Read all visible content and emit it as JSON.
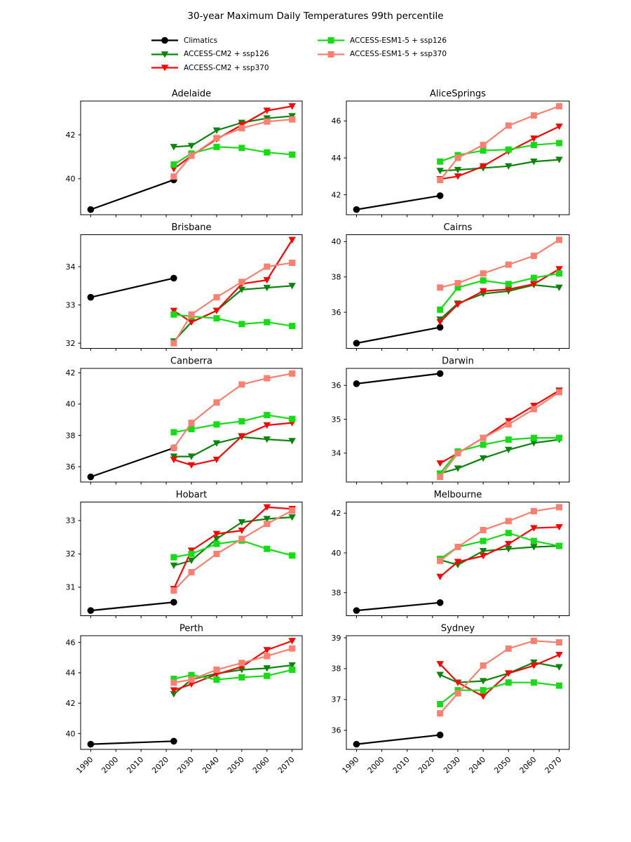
{
  "figure": {
    "title": "30-year Maximum Daily Temperatures 99th percentile"
  },
  "legend": {
    "columns": [
      [
        {
          "series": "climatics",
          "label": "Climatics"
        },
        {
          "series": "cm2_ssp126",
          "label": "ACCESS-CM2 + ssp126"
        },
        {
          "series": "cm2_ssp370",
          "label": "ACCESS-CM2 + ssp370"
        }
      ],
      [
        {
          "series": "esm_ssp126",
          "label": "ACCESS-ESM1-5 + ssp126"
        },
        {
          "series": "esm_ssp370",
          "label": "ACCESS-ESM1-5 + ssp370"
        }
      ]
    ]
  },
  "series_styles": {
    "climatics": {
      "color": "#000000",
      "marker": "circle"
    },
    "cm2_ssp126": {
      "color": "#0a840a",
      "marker": "triangle-down"
    },
    "cm2_ssp370": {
      "color": "#f90606",
      "marker": "triangle-down"
    },
    "esm_ssp126": {
      "color": "#16dc16",
      "marker": "square"
    },
    "esm_ssp370": {
      "color": "#fa8072",
      "marker": "square"
    }
  },
  "chart_data": {
    "type": "line",
    "title": "30-year Maximum Daily Temperatures 99th percentile",
    "x_climatics": [
      1990,
      2023
    ],
    "x_models": [
      2023,
      2030,
      2040,
      2050,
      2060,
      2070
    ],
    "xticks": [
      1990,
      2000,
      2010,
      2020,
      2030,
      2040,
      2050,
      2060,
      2070
    ],
    "x_tick_labels": [
      "1990",
      "2000",
      "2010",
      "2020",
      "2030",
      "2040",
      "2050",
      "2060",
      "2070"
    ],
    "xlim": [
      1986,
      2074
    ],
    "grid": false,
    "legend_position": "top",
    "subplots": [
      {
        "title": "Adelaide",
        "yticks": [
          40,
          42
        ],
        "series": {
          "climatics": [
            38.6,
            39.95
          ],
          "cm2_ssp126": [
            41.45,
            41.5,
            42.2,
            42.55,
            42.75,
            42.85
          ],
          "cm2_ssp370": [
            40.45,
            41.05,
            41.8,
            42.45,
            43.1,
            43.3
          ],
          "esm_ssp126": [
            40.65,
            41.15,
            41.45,
            41.4,
            41.2,
            41.1
          ],
          "esm_ssp370": [
            40.1,
            41.05,
            41.85,
            42.3,
            42.6,
            42.7
          ]
        }
      },
      {
        "title": "AliceSprings",
        "yticks": [
          42,
          44,
          46
        ],
        "series": {
          "climatics": [
            41.2,
            41.95
          ],
          "cm2_ssp126": [
            43.3,
            43.35,
            43.45,
            43.55,
            43.8,
            43.9
          ],
          "cm2_ssp370": [
            42.85,
            43.0,
            43.55,
            44.35,
            45.05,
            45.7
          ],
          "esm_ssp126": [
            43.8,
            44.15,
            44.4,
            44.45,
            44.7,
            44.8
          ],
          "esm_ssp370": [
            42.8,
            44.0,
            44.7,
            45.75,
            46.3,
            46.8
          ]
        }
      },
      {
        "title": "Brisbane",
        "yticks": [
          32,
          33,
          34
        ],
        "series": {
          "climatics": [
            33.2,
            33.7
          ],
          "cm2_ssp126": [
            32.05,
            32.55,
            32.85,
            33.4,
            33.45,
            33.5
          ],
          "cm2_ssp370": [
            32.85,
            32.55,
            32.85,
            33.55,
            33.65,
            34.7
          ],
          "esm_ssp126": [
            32.75,
            32.7,
            32.65,
            32.5,
            32.55,
            32.45
          ],
          "esm_ssp370": [
            32.0,
            32.75,
            33.2,
            33.6,
            34.0,
            34.1
          ]
        }
      },
      {
        "title": "Cairns",
        "yticks": [
          36,
          38,
          40
        ],
        "series": {
          "climatics": [
            34.25,
            35.15
          ],
          "cm2_ssp126": [
            35.6,
            36.5,
            37.05,
            37.2,
            37.55,
            37.4
          ],
          "cm2_ssp370": [
            35.45,
            36.45,
            37.2,
            37.3,
            37.6,
            38.45
          ],
          "esm_ssp126": [
            36.15,
            37.4,
            37.8,
            37.6,
            37.95,
            38.2
          ],
          "esm_ssp370": [
            37.4,
            37.65,
            38.2,
            38.7,
            39.2,
            40.1
          ]
        }
      },
      {
        "title": "Canberra",
        "yticks": [
          36,
          38,
          40,
          42
        ],
        "series": {
          "climatics": [
            35.35,
            37.2
          ],
          "cm2_ssp126": [
            36.65,
            36.65,
            37.5,
            37.9,
            37.75,
            37.65
          ],
          "cm2_ssp370": [
            36.45,
            36.1,
            36.45,
            37.95,
            38.65,
            38.8
          ],
          "esm_ssp126": [
            38.2,
            38.4,
            38.7,
            38.9,
            39.3,
            39.05
          ],
          "esm_ssp370": [
            37.2,
            38.8,
            40.1,
            41.25,
            41.65,
            41.95
          ]
        }
      },
      {
        "title": "Darwin",
        "yticks": [
          34,
          35,
          36
        ],
        "series": {
          "climatics": [
            36.05,
            36.35
          ],
          "cm2_ssp126": [
            33.4,
            33.55,
            33.85,
            34.1,
            34.3,
            34.4
          ],
          "cm2_ssp370": [
            33.7,
            34.0,
            34.45,
            34.95,
            35.4,
            35.85
          ],
          "esm_ssp126": [
            33.4,
            34.05,
            34.25,
            34.4,
            34.45,
            34.45
          ],
          "esm_ssp370": [
            33.3,
            34.0,
            34.45,
            34.85,
            35.3,
            35.8
          ]
        }
      },
      {
        "title": "Hobart",
        "yticks": [
          31,
          32,
          33
        ],
        "series": {
          "climatics": [
            30.3,
            30.55
          ],
          "cm2_ssp126": [
            31.65,
            31.8,
            32.45,
            32.95,
            33.05,
            33.1
          ],
          "cm2_ssp370": [
            30.95,
            32.1,
            32.6,
            32.7,
            33.4,
            33.35
          ],
          "esm_ssp126": [
            31.9,
            32.0,
            32.3,
            32.4,
            32.15,
            31.95
          ],
          "esm_ssp370": [
            30.9,
            31.45,
            32.0,
            32.45,
            32.9,
            33.3
          ]
        }
      },
      {
        "title": "Melbourne",
        "yticks": [
          38,
          40,
          42
        ],
        "series": {
          "climatics": [
            37.1,
            37.5
          ],
          "cm2_ssp126": [
            39.65,
            39.4,
            40.1,
            40.2,
            40.3,
            40.35
          ],
          "cm2_ssp370": [
            38.8,
            39.55,
            39.85,
            40.45,
            41.25,
            41.3
          ],
          "esm_ssp126": [
            39.7,
            40.3,
            40.6,
            41.0,
            40.6,
            40.35
          ],
          "esm_ssp370": [
            39.6,
            40.3,
            41.15,
            41.6,
            42.1,
            42.3
          ]
        }
      },
      {
        "title": "Perth",
        "yticks": [
          40,
          42,
          44,
          46
        ],
        "series": {
          "climatics": [
            39.3,
            39.5
          ],
          "cm2_ssp126": [
            42.6,
            43.55,
            43.95,
            44.2,
            44.3,
            44.5
          ],
          "cm2_ssp370": [
            42.85,
            43.25,
            43.9,
            44.4,
            45.5,
            46.1
          ],
          "esm_ssp126": [
            43.6,
            43.85,
            43.55,
            43.7,
            43.8,
            44.2
          ],
          "esm_ssp370": [
            43.35,
            43.55,
            44.2,
            44.65,
            45.1,
            45.6
          ]
        }
      },
      {
        "title": "Sydney",
        "yticks": [
          36,
          37,
          38,
          39
        ],
        "series": {
          "climatics": [
            35.55,
            35.85
          ],
          "cm2_ssp126": [
            37.8,
            37.55,
            37.6,
            37.85,
            38.2,
            38.05
          ],
          "cm2_ssp370": [
            38.15,
            37.55,
            37.1,
            37.85,
            38.1,
            38.45
          ],
          "esm_ssp126": [
            36.85,
            37.3,
            37.3,
            37.55,
            37.55,
            37.45
          ],
          "esm_ssp370": [
            36.55,
            37.2,
            38.1,
            38.65,
            38.9,
            38.85
          ]
        }
      }
    ]
  }
}
